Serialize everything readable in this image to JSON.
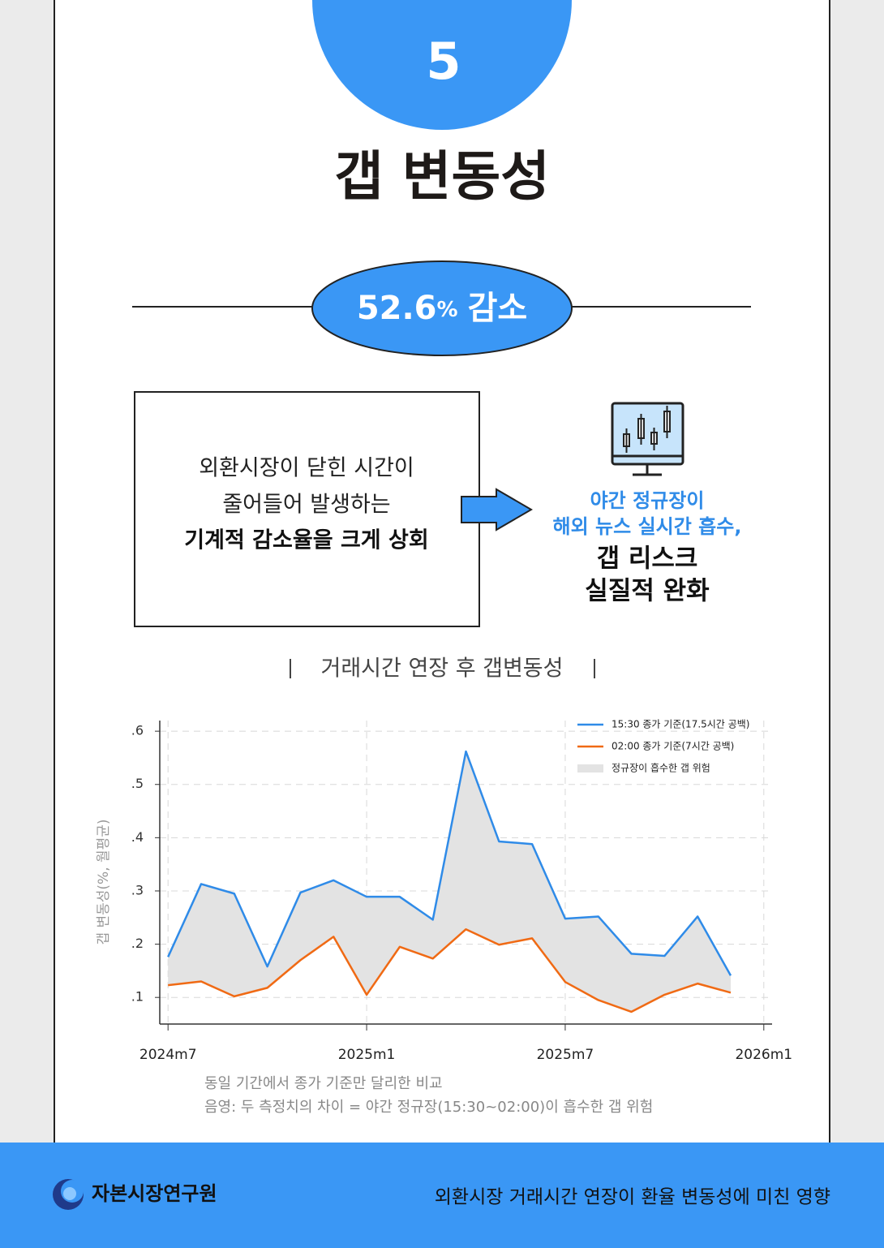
{
  "section_number": "5",
  "title": "갭 변동성",
  "badge": {
    "value": "52.6",
    "unit": "%",
    "label": "감소"
  },
  "box": {
    "lines": [
      "외환시장이 닫힌 시간이",
      "줄어들어 발생하는",
      "기계적 감소율을 크게 상회"
    ]
  },
  "result": {
    "blue_lines": [
      "야간 정규장이",
      "해외 뉴스 실시간 흡수,"
    ],
    "black_lines": [
      "갭 리스크",
      "실질적 완화"
    ]
  },
  "chart_data": {
    "type": "line",
    "title": "거래시간 연장 후 갭변동성",
    "y_label": "갭 변동성(%, 월평균)",
    "x": [
      0,
      1,
      2,
      3,
      4,
      5,
      6,
      7,
      8,
      9,
      10,
      11,
      12,
      13,
      14,
      15,
      16,
      17
    ],
    "xlim": [
      -0.25,
      18.25
    ],
    "xticks": [
      {
        "value": 0,
        "label": "2024m7"
      },
      {
        "value": 6,
        "label": "2025m1"
      },
      {
        "value": 12,
        "label": "2025m7"
      },
      {
        "value": 18,
        "label": "2026m1"
      }
    ],
    "ylim": [
      0.05,
      0.62
    ],
    "yticks": [
      {
        "value": 0.1,
        "label": ".1"
      },
      {
        "value": 0.2,
        "label": ".2"
      },
      {
        "value": 0.3,
        "label": ".3"
      },
      {
        "value": 0.4,
        "label": ".4"
      },
      {
        "value": 0.5,
        "label": ".5"
      },
      {
        "value": 0.6,
        "label": ".6"
      }
    ],
    "grid": true,
    "legend": "top-right",
    "series": [
      {
        "name": "15:30 종가 기준(17.5시간 공백)",
        "color": "#2f8be8",
        "values": [
          0.176,
          0.313,
          0.295,
          0.158,
          0.297,
          0.32,
          0.289,
          0.289,
          0.246,
          0.562,
          0.393,
          0.388,
          0.248,
          0.252,
          0.182,
          0.178,
          0.252,
          0.141
        ]
      },
      {
        "name": "02:00 종가 기준(7시간 공백)",
        "color": "#f06a14",
        "values": [
          0.123,
          0.13,
          0.102,
          0.118,
          0.17,
          0.214,
          0.105,
          0.195,
          0.173,
          0.228,
          0.199,
          0.211,
          0.129,
          0.095,
          0.073,
          0.105,
          0.126,
          0.109
        ]
      }
    ],
    "band": {
      "name": "정규장이 흡수한 갭 위험",
      "color": "#e3e3e3"
    },
    "notes": [
      "동일 기간에서 종가 기준만 달리한 비교",
      "음영: 두 측정치의 차이 = 야간 정규장(15:30~02:00)이 흡수한 갭 위험"
    ]
  },
  "footer": {
    "org": "자본시장연구원",
    "subtitle": "외환시장 거래시간 연장이 환율 변동성에 미친 영향"
  }
}
